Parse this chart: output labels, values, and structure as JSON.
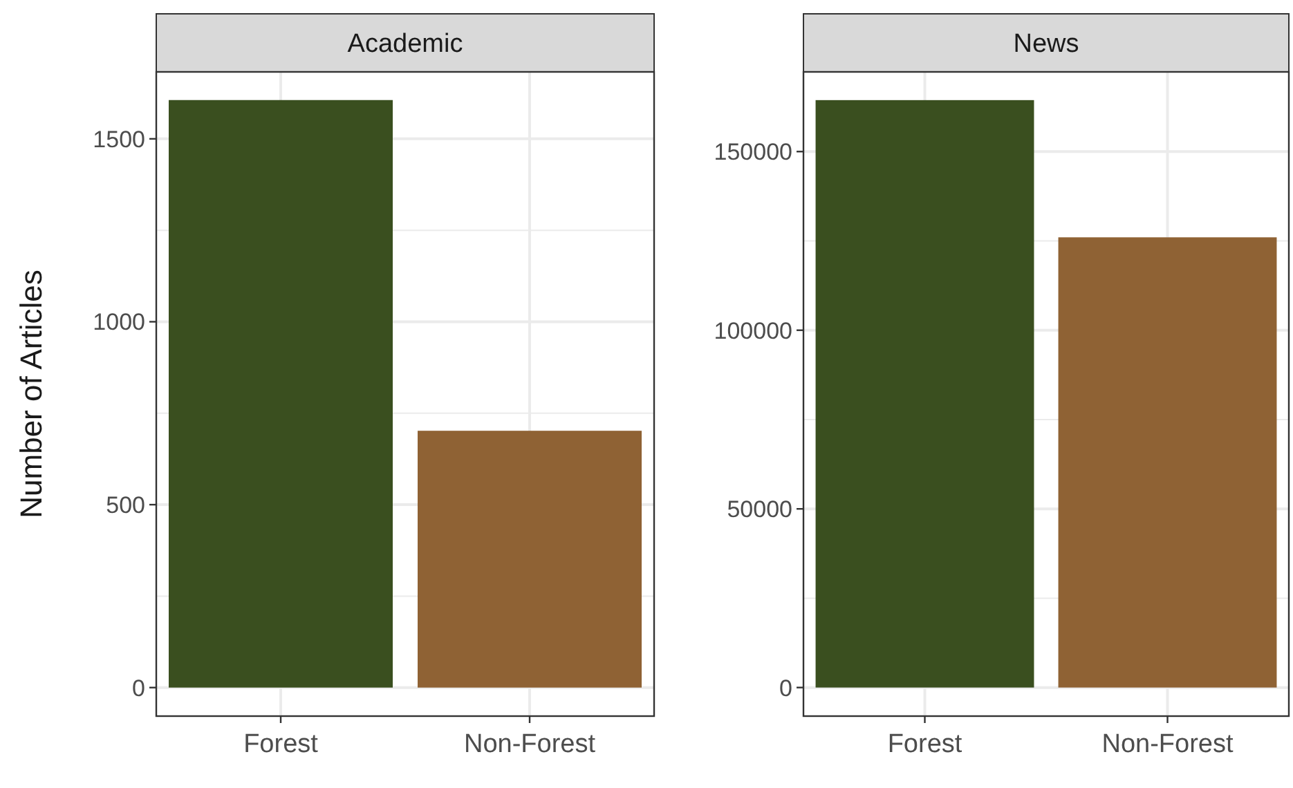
{
  "chart_data": [
    {
      "type": "bar",
      "title": "Academic",
      "ylabel": "Number of Articles",
      "categories": [
        "Forest",
        "Non-Forest"
      ],
      "values": [
        1606,
        702
      ],
      "colors": [
        "#3a4f1f",
        "#8f6234"
      ],
      "ylim": [
        -78,
        1683
      ],
      "yticks": [
        0,
        500,
        1000,
        1500
      ],
      "grid": true
    },
    {
      "type": "bar",
      "title": "News",
      "categories": [
        "Forest",
        "Non-Forest"
      ],
      "values": [
        164400,
        126000
      ],
      "colors": [
        "#3a4f1f",
        "#8f6234"
      ],
      "ylim": [
        -8000,
        172300
      ],
      "yticks": [
        0,
        50000,
        100000,
        150000
      ],
      "grid": true
    }
  ]
}
